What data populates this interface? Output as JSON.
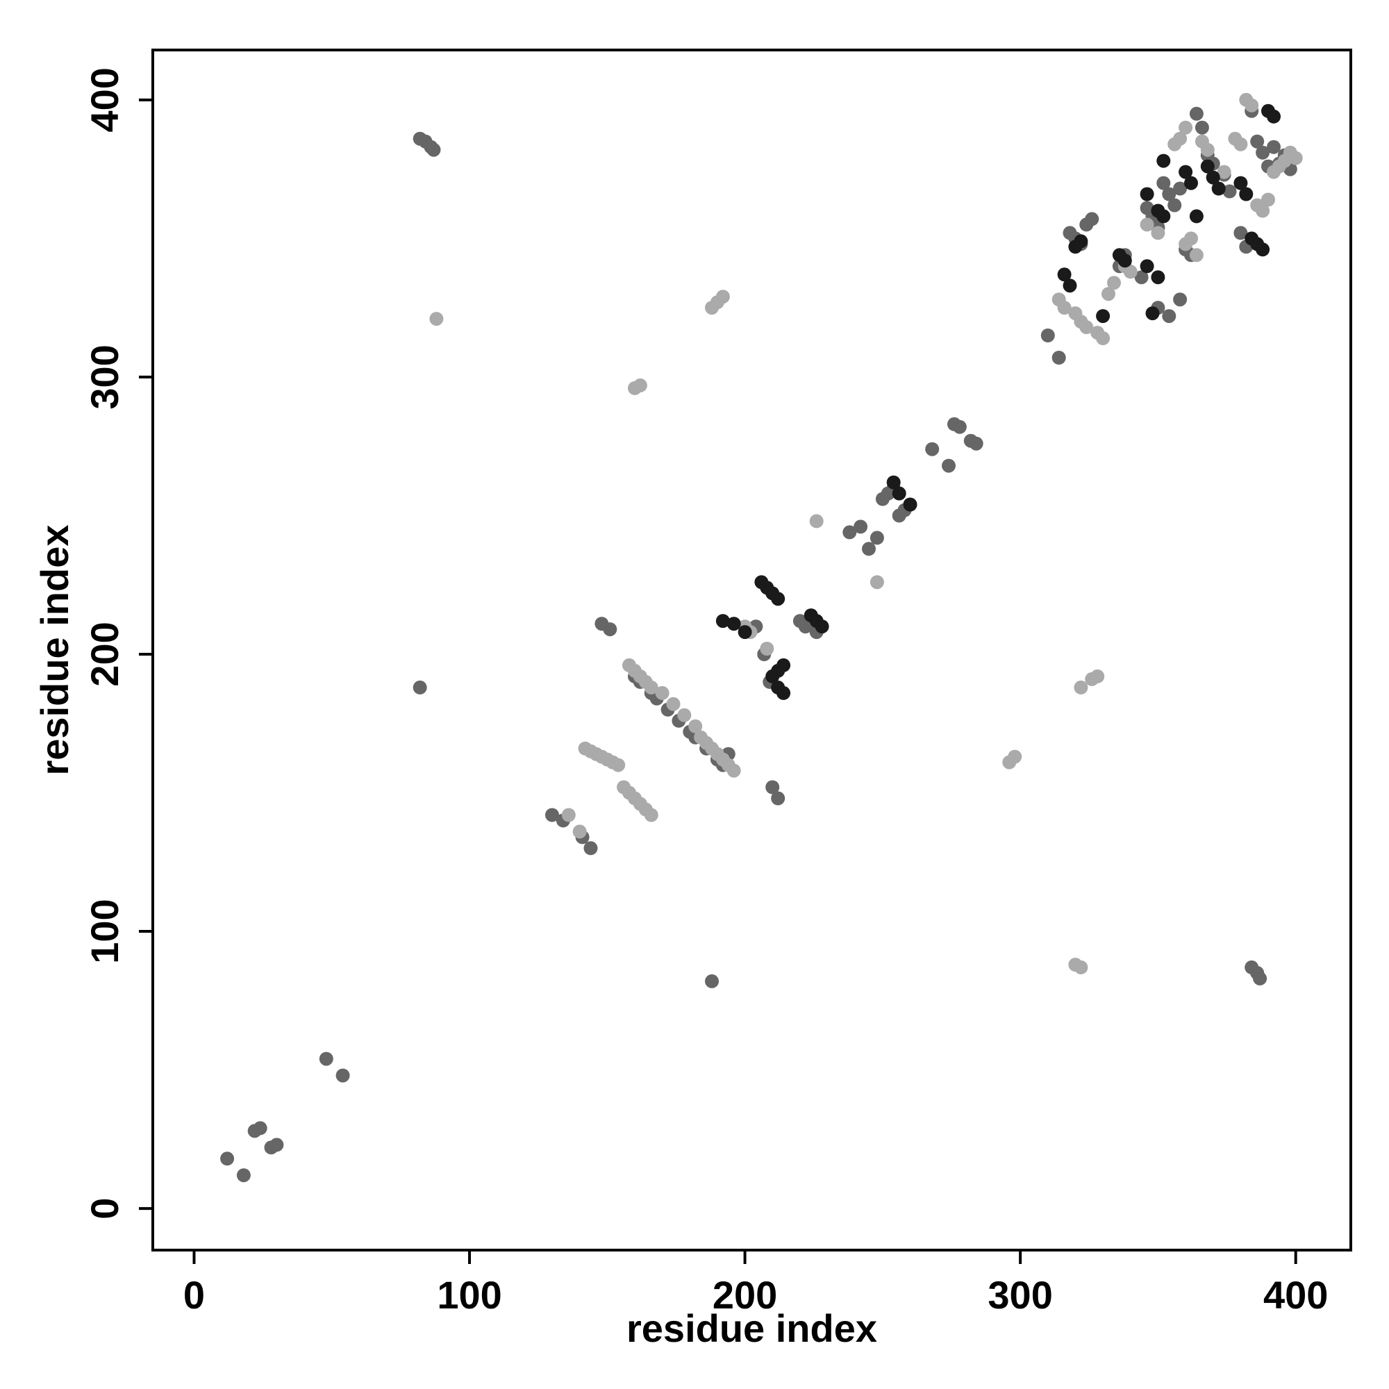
{
  "chart_data": {
    "type": "scatter",
    "title": "",
    "xlabel": "residue index",
    "ylabel": "residue index",
    "xlim": [
      -15,
      420
    ],
    "ylim": [
      -15,
      418
    ],
    "xticks": [
      0,
      100,
      200,
      300,
      400
    ],
    "yticks": [
      0,
      100,
      200,
      300,
      400
    ],
    "xtick_labels": [
      "0",
      "100",
      "200",
      "300",
      "400"
    ],
    "ytick_labels": [
      "0",
      "100",
      "200",
      "300",
      "400"
    ],
    "grid": false,
    "legend": "none",
    "shades": {
      "light": "#aaaaaa",
      "mid": "#666666",
      "dark": "#1a1a1a"
    },
    "series": [
      {
        "shade": "mid",
        "points": [
          [
            12,
            18
          ],
          [
            18,
            12
          ],
          [
            22,
            28
          ],
          [
            24,
            29
          ],
          [
            28,
            22
          ],
          [
            30,
            23
          ],
          [
            48,
            54
          ],
          [
            54,
            48
          ],
          [
            82,
            386
          ],
          [
            84,
            385
          ],
          [
            86,
            383
          ],
          [
            87,
            382
          ],
          [
            82,
            188
          ],
          [
            188,
            82
          ],
          [
            130,
            142
          ],
          [
            134,
            140
          ],
          [
            141,
            134
          ],
          [
            144,
            130
          ],
          [
            148,
            211
          ],
          [
            151,
            209
          ],
          [
            160,
            192
          ],
          [
            162,
            190
          ],
          [
            166,
            186
          ],
          [
            168,
            184
          ],
          [
            172,
            180
          ],
          [
            176,
            176
          ],
          [
            180,
            172
          ],
          [
            182,
            170
          ],
          [
            186,
            166
          ],
          [
            190,
            162
          ],
          [
            192,
            160
          ],
          [
            194,
            164
          ],
          [
            204,
            210
          ],
          [
            207,
            200
          ],
          [
            209,
            190
          ],
          [
            210,
            152
          ],
          [
            212,
            148
          ],
          [
            220,
            212
          ],
          [
            222,
            210
          ],
          [
            224,
            214
          ],
          [
            226,
            208
          ],
          [
            238,
            244
          ],
          [
            242,
            246
          ],
          [
            245,
            238
          ],
          [
            248,
            242
          ],
          [
            250,
            256
          ],
          [
            252,
            258
          ],
          [
            254,
            260
          ],
          [
            256,
            250
          ],
          [
            258,
            252
          ],
          [
            260,
            254
          ],
          [
            268,
            274
          ],
          [
            274,
            268
          ],
          [
            276,
            283
          ],
          [
            278,
            282
          ],
          [
            282,
            277
          ],
          [
            284,
            276
          ],
          [
            310,
            315
          ],
          [
            314,
            307
          ],
          [
            318,
            352
          ],
          [
            320,
            350
          ],
          [
            322,
            348
          ],
          [
            324,
            355
          ],
          [
            326,
            357
          ],
          [
            336,
            340
          ],
          [
            338,
            344
          ],
          [
            344,
            336
          ],
          [
            346,
            361
          ],
          [
            348,
            358
          ],
          [
            350,
            354
          ],
          [
            352,
            370
          ],
          [
            354,
            366
          ],
          [
            356,
            362
          ],
          [
            358,
            368
          ],
          [
            360,
            346
          ],
          [
            362,
            344
          ],
          [
            364,
            395
          ],
          [
            366,
            390
          ],
          [
            368,
            380
          ],
          [
            370,
            377
          ],
          [
            374,
            373
          ],
          [
            376,
            367
          ],
          [
            380,
            352
          ],
          [
            382,
            347
          ],
          [
            384,
            396
          ],
          [
            386,
            385
          ],
          [
            388,
            381
          ],
          [
            390,
            376
          ],
          [
            392,
            383
          ],
          [
            394,
            377
          ],
          [
            396,
            380
          ],
          [
            398,
            375
          ],
          [
            350,
            325
          ],
          [
            354,
            322
          ],
          [
            358,
            328
          ],
          [
            384,
            87
          ],
          [
            386,
            85
          ],
          [
            387,
            83
          ]
        ]
      },
      {
        "shade": "light",
        "points": [
          [
            88,
            321
          ],
          [
            160,
            296
          ],
          [
            162,
            297
          ],
          [
            188,
            325
          ],
          [
            190,
            327
          ],
          [
            192,
            329
          ],
          [
            136,
            142
          ],
          [
            140,
            136
          ],
          [
            142,
            166
          ],
          [
            144,
            165
          ],
          [
            146,
            164
          ],
          [
            148,
            163
          ],
          [
            150,
            162
          ],
          [
            152,
            161
          ],
          [
            154,
            160
          ],
          [
            156,
            152
          ],
          [
            158,
            150
          ],
          [
            160,
            148
          ],
          [
            162,
            146
          ],
          [
            164,
            144
          ],
          [
            166,
            142
          ],
          [
            158,
            196
          ],
          [
            160,
            194
          ],
          [
            162,
            192
          ],
          [
            164,
            190
          ],
          [
            166,
            188
          ],
          [
            170,
            186
          ],
          [
            174,
            182
          ],
          [
            178,
            178
          ],
          [
            182,
            174
          ],
          [
            184,
            170
          ],
          [
            186,
            168
          ],
          [
            188,
            166
          ],
          [
            190,
            164
          ],
          [
            192,
            162
          ],
          [
            194,
            160
          ],
          [
            196,
            158
          ],
          [
            200,
            210
          ],
          [
            202,
            208
          ],
          [
            208,
            202
          ],
          [
            226,
            248
          ],
          [
            248,
            226
          ],
          [
            296,
            161
          ],
          [
            298,
            163
          ],
          [
            314,
            328
          ],
          [
            316,
            325
          ],
          [
            320,
            323
          ],
          [
            322,
            320
          ],
          [
            324,
            318
          ],
          [
            328,
            316
          ],
          [
            330,
            314
          ],
          [
            332,
            330
          ],
          [
            334,
            334
          ],
          [
            338,
            340
          ],
          [
            340,
            338
          ],
          [
            346,
            355
          ],
          [
            350,
            352
          ],
          [
            356,
            384
          ],
          [
            358,
            386
          ],
          [
            360,
            390
          ],
          [
            366,
            385
          ],
          [
            368,
            382
          ],
          [
            378,
            386
          ],
          [
            380,
            384
          ],
          [
            382,
            400
          ],
          [
            384,
            398
          ],
          [
            386,
            362
          ],
          [
            388,
            360
          ],
          [
            390,
            364
          ],
          [
            392,
            374
          ],
          [
            394,
            376
          ],
          [
            396,
            378
          ],
          [
            398,
            381
          ],
          [
            400,
            379
          ],
          [
            364,
            344
          ],
          [
            362,
            350
          ],
          [
            360,
            348
          ],
          [
            374,
            374
          ],
          [
            322,
            188
          ],
          [
            326,
            191
          ],
          [
            328,
            192
          ],
          [
            320,
            88
          ],
          [
            322,
            87
          ]
        ]
      },
      {
        "shade": "dark",
        "points": [
          [
            192,
            212
          ],
          [
            196,
            211
          ],
          [
            200,
            208
          ],
          [
            206,
            226
          ],
          [
            208,
            224
          ],
          [
            210,
            222
          ],
          [
            212,
            220
          ],
          [
            214,
            196
          ],
          [
            212,
            194
          ],
          [
            210,
            192
          ],
          [
            212,
            188
          ],
          [
            214,
            186
          ],
          [
            224,
            214
          ],
          [
            226,
            212
          ],
          [
            228,
            210
          ],
          [
            254,
            262
          ],
          [
            256,
            258
          ],
          [
            260,
            254
          ],
          [
            316,
            337
          ],
          [
            318,
            333
          ],
          [
            320,
            347
          ],
          [
            322,
            349
          ],
          [
            336,
            344
          ],
          [
            338,
            342
          ],
          [
            346,
            340
          ],
          [
            350,
            336
          ],
          [
            346,
            366
          ],
          [
            350,
            360
          ],
          [
            352,
            358
          ],
          [
            360,
            374
          ],
          [
            362,
            370
          ],
          [
            364,
            358
          ],
          [
            368,
            376
          ],
          [
            370,
            372
          ],
          [
            372,
            368
          ],
          [
            380,
            370
          ],
          [
            382,
            366
          ],
          [
            384,
            350
          ],
          [
            386,
            348
          ],
          [
            388,
            346
          ],
          [
            390,
            396
          ],
          [
            392,
            394
          ],
          [
            348,
            323
          ],
          [
            330,
            322
          ],
          [
            352,
            378
          ]
        ]
      }
    ]
  }
}
